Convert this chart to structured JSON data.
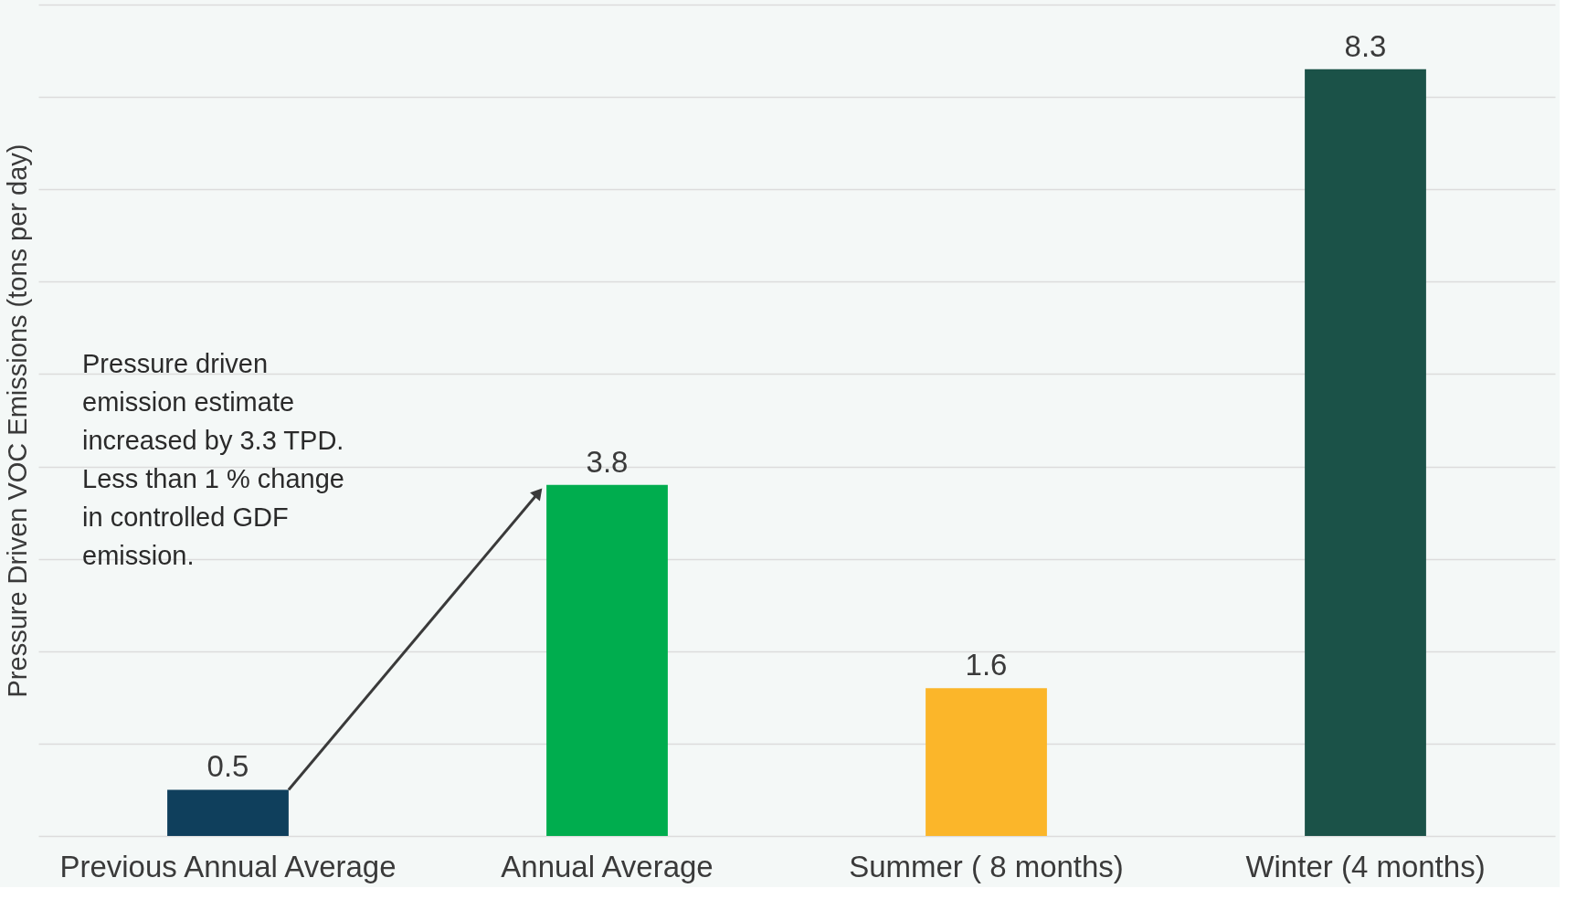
{
  "chart_data": {
    "type": "bar",
    "ylabel": "Pressure Driven VOC Emissions (tons per day)",
    "categories": [
      "Previous Annual Average",
      "Annual Average",
      "Summer ( 8 months)",
      "Winter (4 months)"
    ],
    "values": [
      0.5,
      3.8,
      1.6,
      8.3
    ],
    "colors": [
      "#0f3f5c",
      "#00ad4e",
      "#fbb62a",
      "#1b5248"
    ],
    "ylim": [
      0,
      9
    ],
    "yticks": [
      {
        "value": 0,
        "label": null
      },
      {
        "value": 1,
        "label": null
      },
      {
        "value": 2,
        "label": null
      },
      {
        "value": 3,
        "label": null
      },
      {
        "value": 4,
        "label": null
      },
      {
        "value": 5,
        "label": null
      },
      {
        "value": 6,
        "label": null
      },
      {
        "value": 7,
        "label": null
      },
      {
        "value": 8,
        "label": null
      },
      {
        "value": 9,
        "label": null
      }
    ],
    "grid": "y",
    "tick_labels": "x",
    "data_labels": true,
    "legend": false,
    "annotations": [
      "Pressure driven\nemission estimate\nincreased by 3.3 TPD.\nLess than 1 % change\nin controlled GDF\nemission."
    ]
  }
}
